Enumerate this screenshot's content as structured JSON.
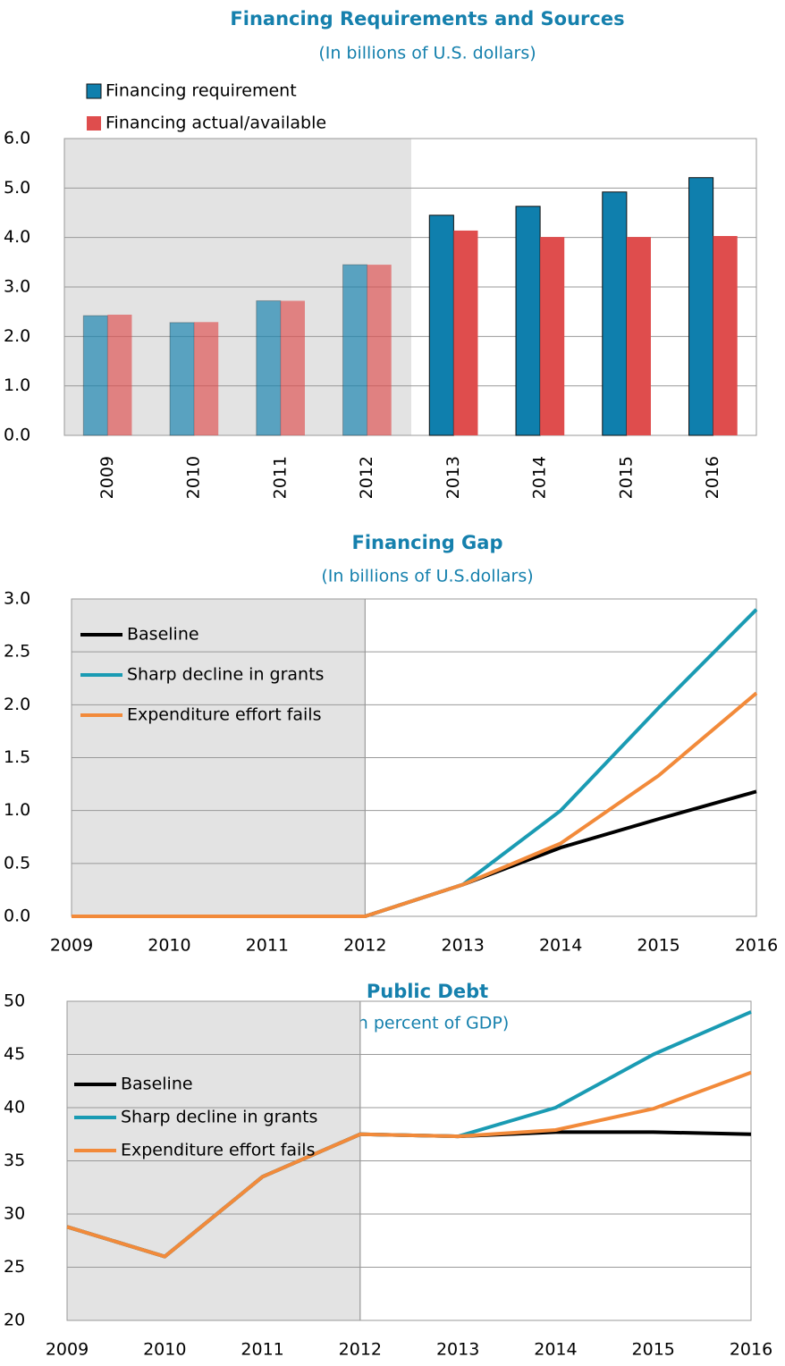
{
  "chart_data": [
    {
      "type": "bar",
      "title": "Financing Requirements and Sources",
      "subtitle": "(In billions of U.S. dollars)",
      "categories": [
        "2009",
        "2010",
        "2011",
        "2012",
        "2013",
        "2014",
        "2015",
        "2016"
      ],
      "series": [
        {
          "name": "Financing requirement",
          "color": "#0f7fad",
          "values": [
            2.42,
            2.28,
            2.72,
            3.45,
            4.45,
            4.63,
            4.92,
            5.21
          ]
        },
        {
          "name": "Financing actual/available",
          "color": "#df4d4d",
          "values": [
            2.44,
            2.29,
            2.72,
            3.45,
            4.14,
            4.01,
            4.01,
            4.03
          ]
        }
      ],
      "ylim": [
        0,
        6
      ],
      "yticks": [
        {
          "value": 0,
          "label": "0.0"
        },
        {
          "value": 1,
          "label": "1.0"
        },
        {
          "value": 2,
          "label": "2.0"
        },
        {
          "value": 3,
          "label": "3.0"
        },
        {
          "value": 4,
          "label": "4.0"
        },
        {
          "value": 5,
          "label": "5.0"
        },
        {
          "value": 6,
          "label": "6.0"
        }
      ],
      "grid": true
    },
    {
      "type": "line",
      "title": "Financing Gap",
      "subtitle": "(In billions of U.S.dollars)",
      "categories": [
        "2009",
        "2010",
        "2011",
        "2012",
        "2013",
        "2014",
        "2015",
        "2016"
      ],
      "series": [
        {
          "name": "Baseline",
          "color": "#000000",
          "values": [
            0,
            0,
            0,
            0,
            0.3,
            0.65,
            0.92,
            1.18
          ]
        },
        {
          "name": "Sharp decline in grants",
          "color": "#1a9bb3",
          "values": [
            0,
            0,
            0,
            0,
            0.3,
            1.0,
            1.97,
            2.9
          ]
        },
        {
          "name": "Expenditure effort fails",
          "color": "#f28a3a",
          "values": [
            0,
            0,
            0,
            0,
            0.3,
            0.69,
            1.33,
            2.11
          ]
        }
      ],
      "ylim": [
        0,
        3
      ],
      "yticks": [
        {
          "value": 0,
          "label": "0.0"
        },
        {
          "value": 0.5,
          "label": "0.5"
        },
        {
          "value": 1,
          "label": "1.0"
        },
        {
          "value": 1.5,
          "label": "1.5"
        },
        {
          "value": 2,
          "label": "2.0"
        },
        {
          "value": 2.5,
          "label": "2.5"
        },
        {
          "value": 3,
          "label": "3.0"
        }
      ],
      "grid": true
    },
    {
      "type": "line",
      "title": "Public Debt",
      "subtitle": "(In percent of GDP)",
      "categories": [
        "2009",
        "2010",
        "2011",
        "2012",
        "2013",
        "2014",
        "2015",
        "2016"
      ],
      "series": [
        {
          "name": "Baseline",
          "color": "#000000",
          "values": [
            28.8,
            26.0,
            33.5,
            37.5,
            37.3,
            37.7,
            37.7,
            37.5
          ]
        },
        {
          "name": "Sharp decline in grants",
          "color": "#1a9bb3",
          "values": [
            28.8,
            26.0,
            33.5,
            37.5,
            37.3,
            40.0,
            45.0,
            49.0
          ]
        },
        {
          "name": "Expenditure effort fails",
          "color": "#f28a3a",
          "values": [
            28.8,
            26.0,
            33.5,
            37.5,
            37.3,
            37.9,
            39.9,
            43.3
          ]
        }
      ],
      "ylim": [
        20,
        50
      ],
      "yticks": [
        20,
        25,
        30,
        35,
        40,
        45,
        50
      ],
      "grid": true
    }
  ]
}
